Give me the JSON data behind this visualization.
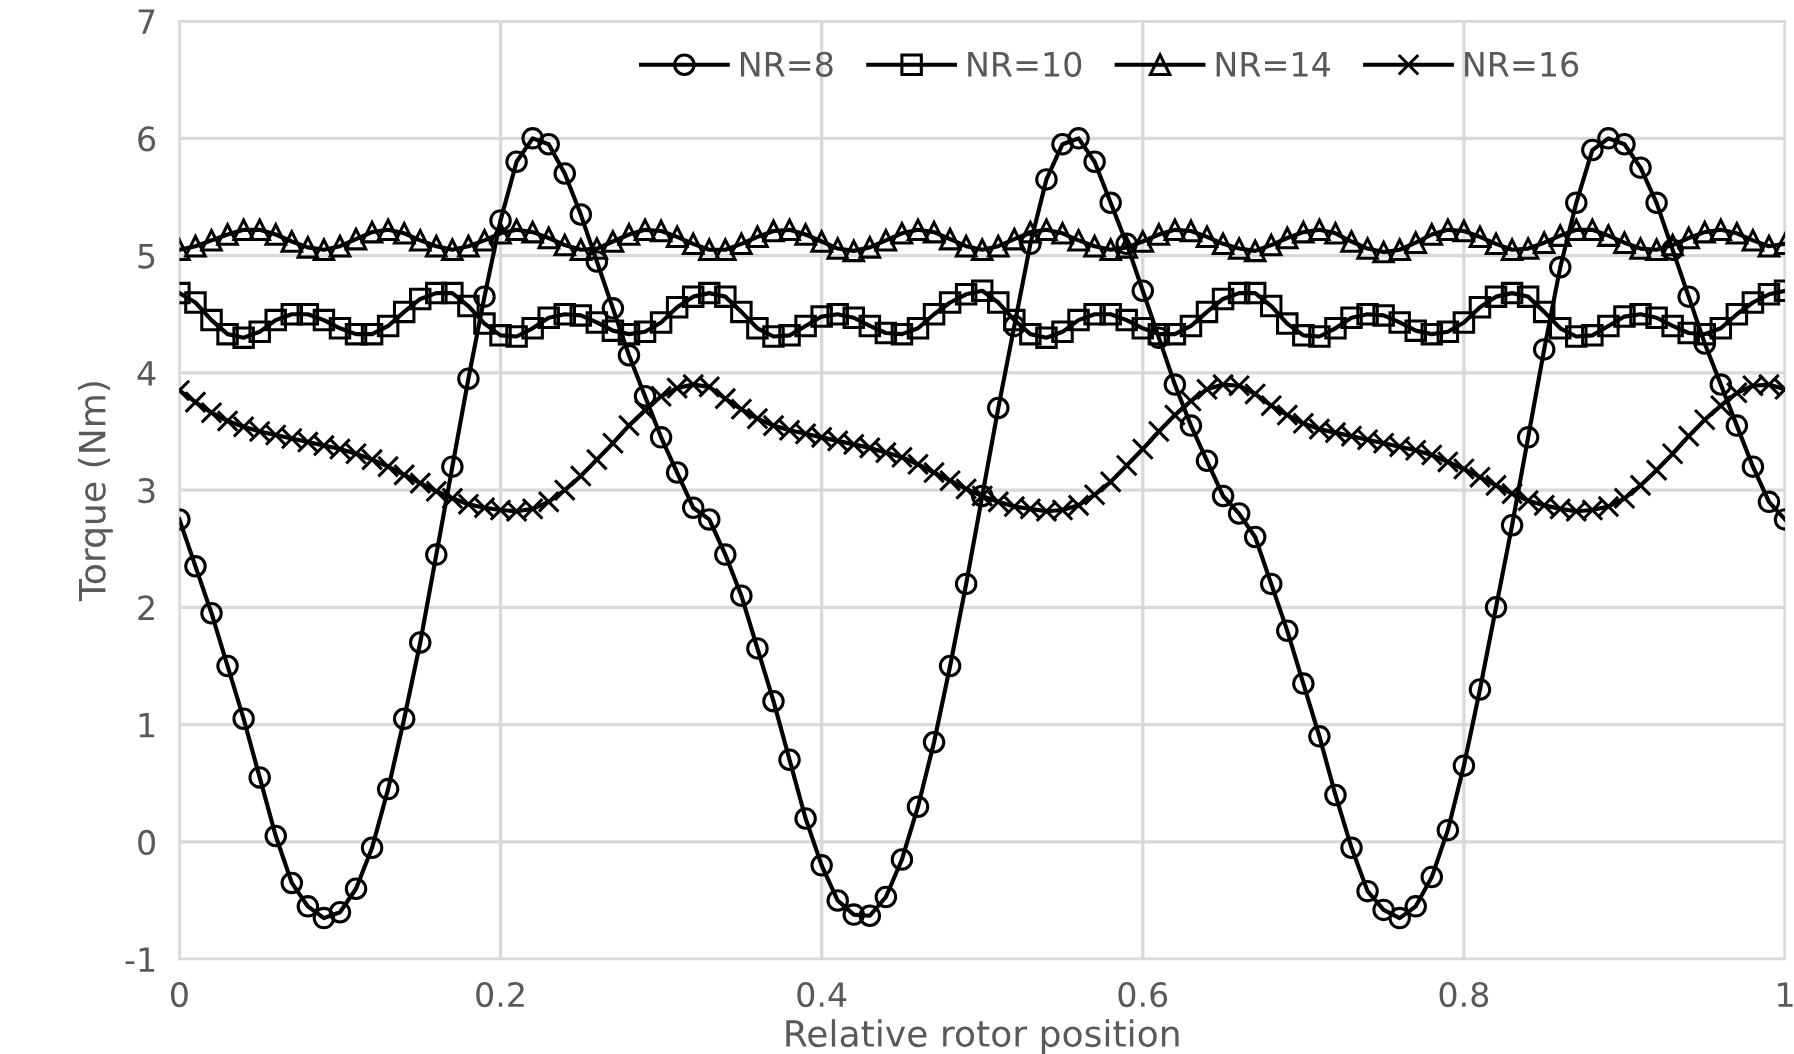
{
  "chart_data": {
    "type": "line",
    "xlabel": "Relative rotor position",
    "ylabel": "Torque (Nm)",
    "x": [
      0,
      0.01,
      0.02,
      0.03,
      0.04,
      0.05,
      0.06,
      0.07,
      0.08,
      0.09,
      0.1,
      0.11,
      0.12,
      0.13,
      0.14,
      0.15,
      0.16,
      0.17,
      0.18,
      0.19,
      0.2,
      0.21,
      0.22,
      0.23,
      0.24,
      0.25,
      0.26,
      0.27,
      0.28,
      0.29,
      0.3,
      0.31,
      0.32,
      0.33,
      0.34,
      0.35,
      0.36,
      0.37,
      0.38,
      0.39,
      0.4,
      0.41,
      0.42,
      0.43,
      0.44,
      0.45,
      0.46,
      0.47,
      0.48,
      0.49,
      0.5,
      0.51,
      0.52,
      0.53,
      0.54,
      0.55,
      0.56,
      0.57,
      0.58,
      0.59,
      0.6,
      0.61,
      0.62,
      0.63,
      0.64,
      0.65,
      0.66,
      0.67,
      0.68,
      0.69,
      0.7,
      0.71,
      0.72,
      0.73,
      0.74,
      0.75,
      0.76,
      0.77,
      0.78,
      0.79,
      0.8,
      0.81,
      0.82,
      0.83,
      0.84,
      0.85,
      0.86,
      0.87,
      0.88,
      0.89,
      0.9,
      0.91,
      0.92,
      0.93,
      0.94,
      0.95,
      0.96,
      0.97,
      0.98,
      0.99,
      1
    ],
    "series": [
      {
        "name": "NR=8",
        "color": "#000000",
        "marker": "circle",
        "values": [
          2.75,
          2.35,
          1.95,
          1.5,
          1.05,
          0.55,
          0.05,
          -0.35,
          -0.55,
          -0.65,
          -0.6,
          -0.4,
          -0.05,
          0.45,
          1.05,
          1.7,
          2.45,
          3.2,
          3.95,
          4.65,
          5.3,
          5.8,
          6.0,
          5.95,
          5.7,
          5.35,
          4.95,
          4.55,
          4.15,
          3.8,
          3.45,
          3.15,
          2.85,
          2.75,
          2.45,
          2.1,
          1.65,
          1.2,
          0.7,
          0.2,
          -0.2,
          -0.5,
          -0.62,
          -0.63,
          -0.47,
          -0.15,
          0.3,
          0.85,
          1.5,
          2.2,
          2.95,
          3.7,
          4.4,
          5.1,
          5.65,
          5.95,
          6.0,
          5.8,
          5.45,
          5.1,
          4.7,
          4.3,
          3.9,
          3.55,
          3.25,
          2.95,
          2.8,
          2.6,
          2.2,
          1.8,
          1.35,
          0.9,
          0.4,
          -0.05,
          -0.42,
          -0.58,
          -0.65,
          -0.55,
          -0.3,
          0.1,
          0.65,
          1.3,
          2.0,
          2.7,
          3.45,
          4.2,
          4.9,
          5.45,
          5.9,
          6.0,
          5.95,
          5.75,
          5.45,
          5.05,
          4.65,
          4.25,
          3.9,
          3.55,
          3.2,
          2.9,
          2.75
        ]
      },
      {
        "name": "NR=10",
        "color": "#000000",
        "marker": "square",
        "values": [
          4.68,
          4.6,
          4.45,
          4.33,
          4.3,
          4.35,
          4.45,
          4.5,
          4.5,
          4.45,
          4.38,
          4.33,
          4.33,
          4.4,
          4.52,
          4.63,
          4.68,
          4.68,
          4.57,
          4.42,
          4.32,
          4.31,
          4.38,
          4.47,
          4.5,
          4.49,
          4.43,
          4.36,
          4.33,
          4.35,
          4.43,
          4.56,
          4.65,
          4.68,
          4.65,
          4.52,
          4.38,
          4.31,
          4.32,
          4.4,
          4.48,
          4.5,
          4.47,
          4.4,
          4.34,
          4.33,
          4.38,
          4.5,
          4.6,
          4.67,
          4.7,
          4.6,
          4.45,
          4.33,
          4.3,
          4.35,
          4.45,
          4.5,
          4.5,
          4.45,
          4.38,
          4.33,
          4.33,
          4.4,
          4.52,
          4.63,
          4.68,
          4.68,
          4.57,
          4.42,
          4.32,
          4.31,
          4.38,
          4.47,
          4.5,
          4.49,
          4.43,
          4.36,
          4.33,
          4.35,
          4.43,
          4.56,
          4.65,
          4.68,
          4.65,
          4.52,
          4.38,
          4.31,
          4.32,
          4.4,
          4.48,
          4.5,
          4.47,
          4.4,
          4.34,
          4.33,
          4.38,
          4.5,
          4.6,
          4.67,
          4.7
        ]
      },
      {
        "name": "NR=14",
        "color": "#000000",
        "marker": "triangle",
        "values": [
          5.05,
          5.08,
          5.13,
          5.18,
          5.22,
          5.22,
          5.18,
          5.12,
          5.07,
          5.05,
          5.08,
          5.14,
          5.2,
          5.22,
          5.19,
          5.13,
          5.08,
          5.05,
          5.08,
          5.13,
          5.19,
          5.22,
          5.2,
          5.15,
          5.09,
          5.05,
          5.06,
          5.12,
          5.18,
          5.22,
          5.21,
          5.16,
          5.1,
          5.05,
          5.05,
          5.1,
          5.16,
          5.21,
          5.22,
          5.18,
          5.12,
          5.06,
          5.04,
          5.07,
          5.13,
          5.19,
          5.22,
          5.2,
          5.14,
          5.08,
          5.05,
          5.08,
          5.14,
          5.2,
          5.22,
          5.19,
          5.13,
          5.08,
          5.05,
          5.07,
          5.12,
          5.18,
          5.22,
          5.21,
          5.16,
          5.1,
          5.06,
          5.04,
          5.09,
          5.15,
          5.2,
          5.22,
          5.19,
          5.12,
          5.06,
          5.03,
          5.05,
          5.11,
          5.18,
          5.22,
          5.21,
          5.16,
          5.1,
          5.05,
          5.06,
          5.11,
          5.17,
          5.22,
          5.22,
          5.17,
          5.11,
          5.06,
          5.05,
          5.09,
          5.15,
          5.2,
          5.22,
          5.19,
          5.13,
          5.08,
          5.1
        ]
      },
      {
        "name": "NR=16",
        "color": "#000000",
        "marker": "cross",
        "values": [
          3.85,
          3.75,
          3.66,
          3.59,
          3.54,
          3.5,
          3.47,
          3.44,
          3.41,
          3.38,
          3.35,
          3.31,
          3.26,
          3.2,
          3.13,
          3.06,
          2.99,
          2.93,
          2.88,
          2.85,
          2.83,
          2.82,
          2.84,
          2.9,
          3.0,
          3.12,
          3.26,
          3.4,
          3.55,
          3.68,
          3.8,
          3.87,
          3.9,
          3.88,
          3.78,
          3.69,
          3.61,
          3.55,
          3.51,
          3.48,
          3.45,
          3.42,
          3.39,
          3.36,
          3.32,
          3.28,
          3.22,
          3.15,
          3.08,
          3.01,
          2.95,
          2.9,
          2.86,
          2.84,
          2.82,
          2.83,
          2.87,
          2.96,
          3.07,
          3.21,
          3.35,
          3.5,
          3.64,
          3.76,
          3.86,
          3.9,
          3.89,
          3.82,
          3.72,
          3.64,
          3.57,
          3.52,
          3.49,
          3.46,
          3.43,
          3.4,
          3.37,
          3.34,
          3.3,
          3.24,
          3.18,
          3.11,
          3.04,
          2.97,
          2.91,
          2.87,
          2.84,
          2.82,
          2.83,
          2.86,
          2.93,
          3.04,
          3.17,
          3.31,
          3.46,
          3.6,
          3.72,
          3.83,
          3.89,
          3.9,
          3.86
        ]
      }
    ],
    "xlim": [
      0,
      1
    ],
    "xticks": [
      0,
      0.2,
      0.4,
      0.6,
      0.8,
      1
    ],
    "ylim": [
      -1,
      7
    ],
    "yticks": [
      -1,
      0,
      1,
      2,
      3,
      4,
      5,
      6,
      7
    ],
    "grid": true,
    "legend": "top",
    "line_style": "solid"
  }
}
